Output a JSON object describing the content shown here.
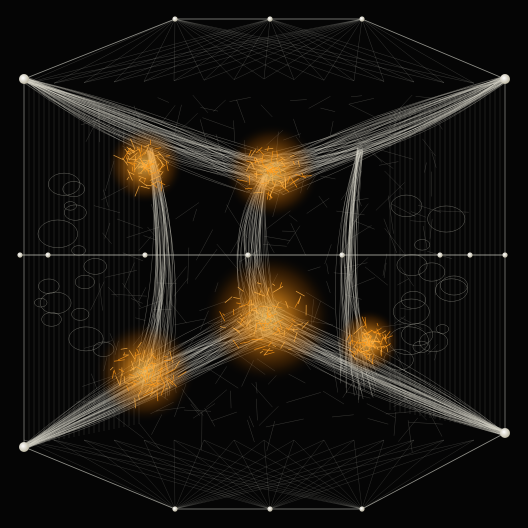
{
  "image": {
    "subject": "web-structure-artwork",
    "colors": {
      "background": "#050505",
      "frame_line": "#cfcfc4",
      "mesh_line": "#d8d6c8",
      "hot_core": "#ff9a1a",
      "hot_glow": "#ffb347",
      "node": "#f2efe0"
    }
  }
}
